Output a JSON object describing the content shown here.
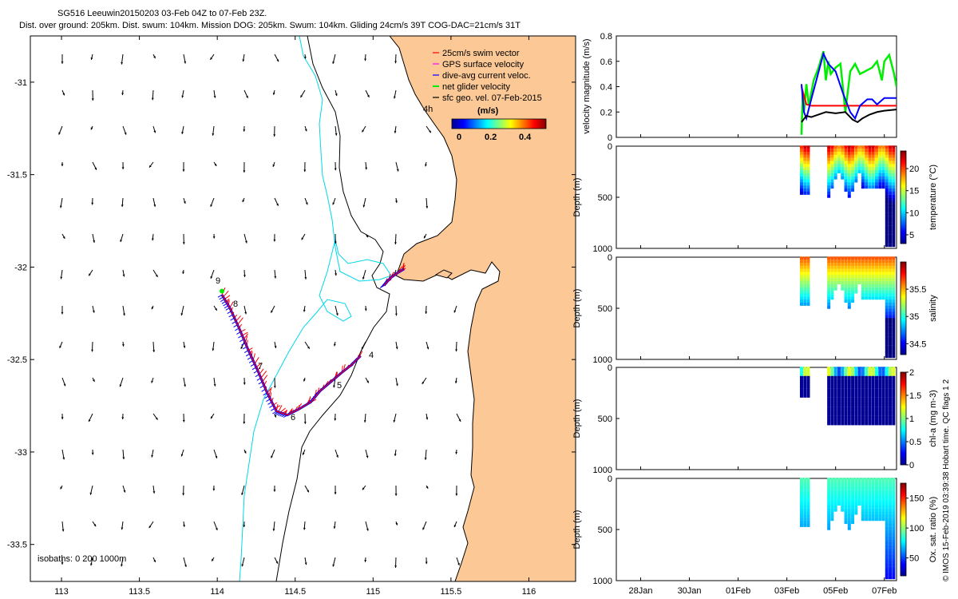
{
  "title_line1": "SG516 Leeuwin20150203 03-Feb 04Z to 07-Feb 23Z.",
  "title_line2": "Dist. over ground: 205km. Dist. swum: 104km. Mission DOG: 205km. Swum: 104km. Gliding 24cm/s 39T COG-DAC=21cm/s 31T",
  "colors": {
    "land": "#fbc896",
    "isobath_0": "#000000",
    "isobath_200": "#000000",
    "isobath_1000": "#00d8e8",
    "swim": "#ff0000",
    "gps": "#ff00ff",
    "dac": "#0000ff",
    "net": "#00ee00",
    "geo": "#000000"
  },
  "chart_data": [
    {
      "type": "map",
      "xticks": [
        "113",
        "113.5",
        "114",
        "114.5",
        "115",
        "115.5",
        "116"
      ],
      "yticks": [
        "-31",
        "-31.5",
        "-32",
        "-32.5",
        "-33",
        "-33.5"
      ],
      "xlim": [
        112.8,
        116.3
      ],
      "ylim": [
        -33.7,
        -30.75
      ],
      "legend": [
        {
          "label": "25cm/s swim vector",
          "color": "#ff0000"
        },
        {
          "label": "GPS surface velocity",
          "color": "#ff00ff"
        },
        {
          "label": "dive-avg current veloc.",
          "color": "#0000ff"
        },
        {
          "label": "net glider velocity",
          "color": "#00ee00"
        },
        {
          "label": "sfc geo. vel. 07-Feb-2015",
          "color": "#000000"
        }
      ],
      "colorbar": {
        "label": "(m/s)",
        "ticks": [
          "0",
          "0.2",
          "0.4"
        ],
        "range": [
          0,
          0.5
        ]
      },
      "annotations": [
        "4h",
        "9",
        "8",
        "7",
        "6",
        "5",
        "4"
      ],
      "isobaths_label": "isobaths: 0   200  1000m",
      "track": [
        [
          114.03,
          -32.15
        ],
        [
          114.08,
          -32.22
        ],
        [
          114.14,
          -32.33
        ],
        [
          114.2,
          -32.45
        ],
        [
          114.26,
          -32.56
        ],
        [
          114.32,
          -32.68
        ],
        [
          114.38,
          -32.78
        ],
        [
          114.45,
          -32.8
        ],
        [
          114.52,
          -32.77
        ],
        [
          114.6,
          -32.73
        ],
        [
          114.66,
          -32.67
        ],
        [
          114.73,
          -32.62
        ],
        [
          114.8,
          -32.57
        ],
        [
          114.86,
          -32.53
        ],
        [
          114.92,
          -32.48
        ]
      ],
      "track2": [
        [
          115.07,
          -32.1
        ],
        [
          115.11,
          -32.06
        ],
        [
          115.16,
          -32.03
        ],
        [
          115.2,
          -32.01
        ]
      ],
      "track_end": [
        114.03,
        -32.13
      ]
    },
    {
      "type": "line",
      "ylabel": "velocity magnitude (m/s)",
      "ylim": [
        0,
        0.8
      ],
      "yticks": [
        "0",
        "0.2",
        "0.4",
        "0.6",
        "0.8"
      ],
      "xlim": [
        0,
        11.5
      ],
      "series": [
        {
          "color": "#00ee00",
          "x": [
            7.6,
            7.65,
            7.7,
            7.8,
            7.9,
            8.1,
            8.3,
            8.5,
            8.6,
            8.7,
            8.8,
            9.0,
            9.2,
            9.4,
            9.6,
            9.8,
            10.0,
            10.2,
            10.5,
            10.7,
            10.9,
            11.0,
            11.2,
            11.4,
            11.5
          ],
          "y": [
            0.02,
            0.35,
            0.2,
            0.42,
            0.25,
            0.45,
            0.55,
            0.68,
            0.45,
            0.6,
            0.5,
            0.55,
            0.58,
            0.2,
            0.52,
            0.58,
            0.5,
            0.52,
            0.55,
            0.6,
            0.45,
            0.6,
            0.65,
            0.5,
            0.4
          ]
        },
        {
          "color": "#ff0000",
          "x": [
            7.6,
            7.8,
            8.0,
            9.0,
            10.0,
            11.0,
            11.5
          ],
          "y": [
            0.4,
            0.26,
            0.25,
            0.25,
            0.25,
            0.25,
            0.25
          ]
        },
        {
          "color": "#0000ff",
          "x": [
            7.6,
            7.7,
            7.8,
            8.0,
            8.5,
            8.7,
            9.0,
            9.3,
            9.6,
            9.8,
            10.0,
            10.3,
            10.5,
            10.7,
            11.0,
            11.5
          ],
          "y": [
            0.42,
            0.2,
            0.15,
            0.3,
            0.66,
            0.58,
            0.52,
            0.35,
            0.2,
            0.15,
            0.25,
            0.3,
            0.3,
            0.26,
            0.31,
            0.31
          ]
        },
        {
          "color": "#000000",
          "x": [
            7.6,
            7.8,
            8.0,
            8.3,
            8.6,
            9.0,
            9.4,
            9.7,
            9.9,
            10.1,
            10.4,
            10.7,
            11.0,
            11.5
          ],
          "y": [
            0.12,
            0.17,
            0.16,
            0.18,
            0.2,
            0.19,
            0.2,
            0.14,
            0.12,
            0.15,
            0.18,
            0.2,
            0.21,
            0.22
          ]
        }
      ]
    },
    {
      "type": "scatter",
      "ylabel": "Depth (m)",
      "ylim": [
        1000,
        0
      ],
      "yticks": [
        "0",
        "500",
        "1000"
      ],
      "cbar_label": "temperature (°C)",
      "cbar_ticks": [
        "5",
        "10",
        "15",
        "20"
      ],
      "cbar_range": [
        3,
        24
      ],
      "colormap": "jet"
    },
    {
      "type": "scatter",
      "ylabel": "Depth (m)",
      "ylim": [
        1000,
        0
      ],
      "yticks": [
        "0",
        "500",
        "1000"
      ],
      "cbar_label": "salinity",
      "cbar_ticks": [
        "34.5",
        "35",
        "35.5"
      ],
      "cbar_range": [
        34.3,
        36.0
      ],
      "colormap": "jet"
    },
    {
      "type": "scatter",
      "ylabel": "Depth (m)",
      "ylim": [
        1000,
        0
      ],
      "yticks": [
        "0",
        "500",
        "1000"
      ],
      "cbar_label": "chl-a (mg m-3)",
      "cbar_ticks": [
        "0",
        "0.5",
        "1",
        "1.5",
        "2"
      ],
      "cbar_range": [
        0,
        2
      ],
      "colormap": "jet"
    },
    {
      "type": "scatter",
      "ylabel": "Depth (m)",
      "ylim": [
        1000,
        0
      ],
      "yticks": [
        "0",
        "500",
        "1000"
      ],
      "cbar_label": "Ox. sat. ratio (%)",
      "cbar_ticks": [
        "50",
        "100",
        "150"
      ],
      "cbar_range": [
        20,
        175
      ],
      "colormap": "jet",
      "xticks": [
        "28Jan",
        "30Jan",
        "01Feb",
        "03Feb",
        "05Feb",
        "07Feb"
      ]
    }
  ],
  "side_text": "© IMOS 15-Feb-2019 03:39:38 Hobart time. QC flags 1  2"
}
